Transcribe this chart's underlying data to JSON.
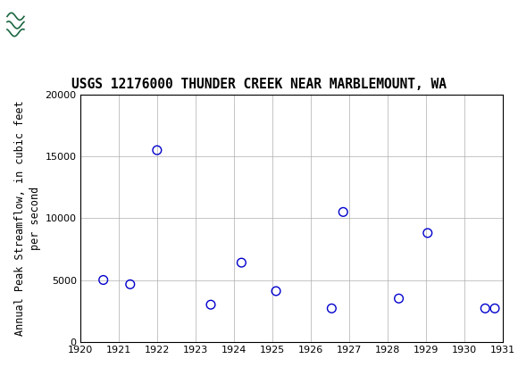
{
  "title": "USGS 12176000 THUNDER CREEK NEAR MARBLEMOUNT, WA",
  "ylabel": "Annual Peak Streamflow, in cubic feet\nper second",
  "years": [
    1920.6,
    1921.3,
    1922.0,
    1923.4,
    1924.2,
    1925.1,
    1926.55,
    1926.85,
    1928.3,
    1929.05,
    1930.55,
    1930.8
  ],
  "flows": [
    5000,
    4650,
    15500,
    3000,
    6400,
    4100,
    2700,
    10500,
    3500,
    8800,
    2700,
    2700
  ],
  "xlim": [
    1920,
    1931
  ],
  "ylim": [
    0,
    20000
  ],
  "xticks": [
    1920,
    1921,
    1922,
    1923,
    1924,
    1925,
    1926,
    1927,
    1928,
    1929,
    1930,
    1931
  ],
  "yticks": [
    0,
    5000,
    10000,
    15000,
    20000
  ],
  "marker_color": "#0000CC",
  "marker_size": 7,
  "grid_color": "#aaaaaa",
  "bg_color": "#ffffff",
  "header_bg_color": "#1a6640",
  "title_fontsize": 10.5,
  "ylabel_fontsize": 8.5,
  "tick_fontsize": 8
}
